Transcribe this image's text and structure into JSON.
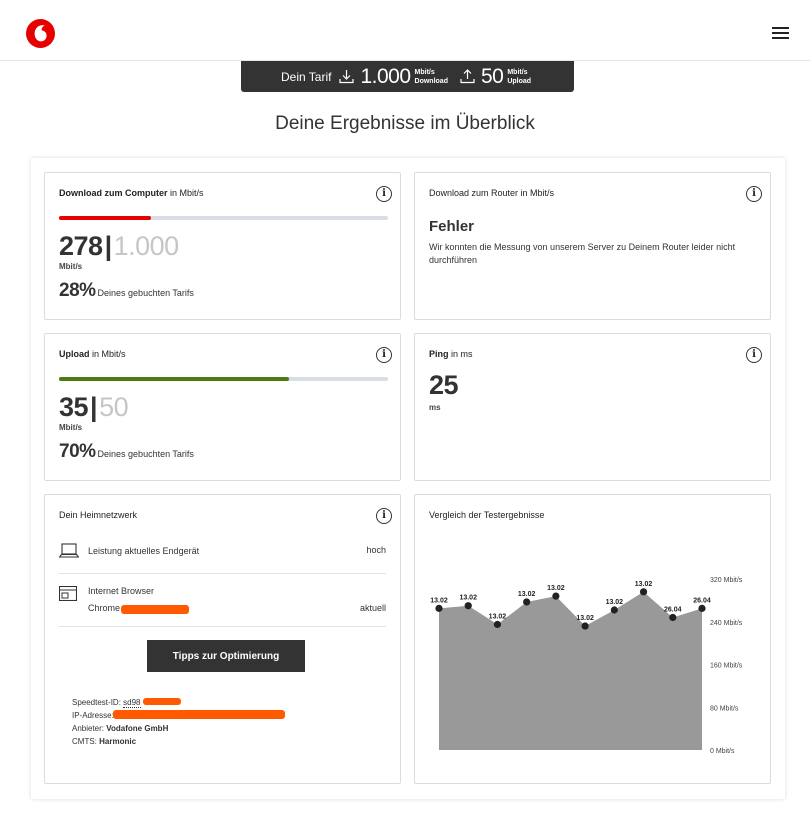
{
  "header": {
    "brand": "Vodafone",
    "tarif": {
      "label": "Dein Tarif",
      "download_value": "1.000",
      "download_unit": "Mbit/s",
      "download_label": "Download",
      "upload_value": "50",
      "upload_unit": "Mbit/s",
      "upload_label": "Upload"
    }
  },
  "page_title": "Deine Ergebnisse im Überblick",
  "cards": {
    "download_computer": {
      "title_bold": "Download zum Computer",
      "title_rest": " in Mbit/s",
      "value": "278",
      "separator": "|",
      "max": "1.000",
      "unit": "Mbit/s",
      "percent": "28%",
      "percent_text": "Deines gebuchten Tarifs",
      "progress": 0.28,
      "bar_color": "#e60000"
    },
    "download_router": {
      "title_bold": "Download zum Router",
      "title_rest": " in Mbit/s",
      "error_title": "Fehler",
      "error_text": "Wir konnten die Messung von unserem Server zu Deinem Router leider nicht durchführen"
    },
    "upload": {
      "title_bold": "Upload",
      "title_rest": " in Mbit/s",
      "value": "35",
      "separator": "|",
      "max": "50",
      "unit": "Mbit/s",
      "percent": "70%",
      "percent_text": "Deines gebuchten Tarifs",
      "progress": 0.7,
      "bar_color": "#4a7c12"
    },
    "ping": {
      "title_bold": "Ping",
      "title_rest": " in ms",
      "value": "25",
      "unit": "ms"
    },
    "heimnetzwerk": {
      "title": "Dein Heimnetzwerk",
      "device_label": "Leistung aktuelles Endgerät",
      "device_value": "hoch",
      "browser_label": "Internet Browser",
      "browser_name": "Chrome",
      "browser_value": "aktuell",
      "button_label": "Tipps zur Optimierung",
      "meta": {
        "speedtest_label": "Speedtest-ID:",
        "speedtest_value": "sd98",
        "ip_label": "IP-Adresse:",
        "anbieter_label": "Anbieter:",
        "anbieter_value": "Vodafone GmbH",
        "cmts_label": "CMTS:",
        "cmts_value": "Harmonic"
      }
    },
    "vergleich": {
      "title": "Vergleich der Testergebnisse"
    }
  },
  "chart_data": {
    "type": "area",
    "x": [
      "13.02",
      "13.02",
      "13.02",
      "13.02",
      "13.02",
      "13.02",
      "13.02",
      "13.02",
      "26.04",
      "26.04"
    ],
    "values": [
      265,
      270,
      235,
      277,
      288,
      232,
      262,
      296,
      248,
      265
    ],
    "ylim": [
      0,
      320
    ],
    "yticks": [
      0,
      80,
      160,
      240,
      320
    ],
    "ytick_labels": [
      "0 Mbit/s",
      "80 Mbit/s",
      "160 Mbit/s",
      "240 Mbit/s",
      "320 Mbit/s"
    ],
    "grid": false,
    "fill_color": "#999999"
  }
}
